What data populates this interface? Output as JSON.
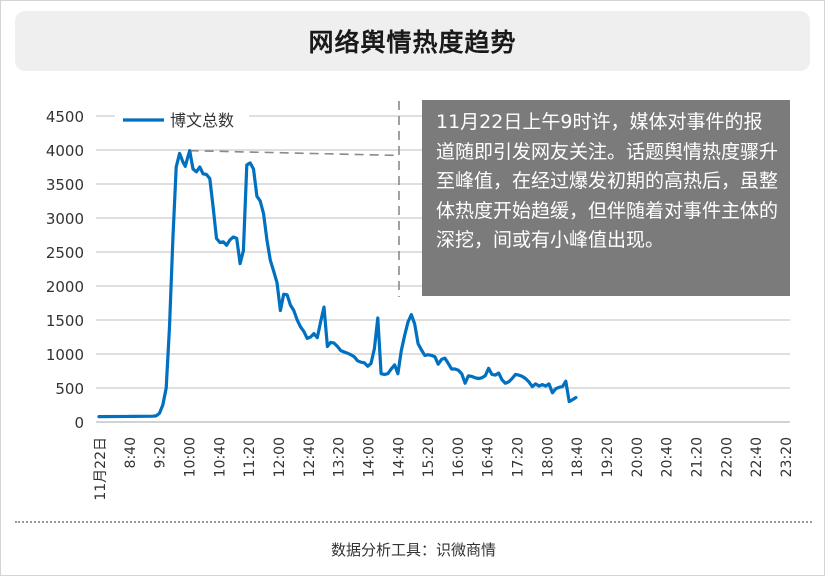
{
  "title": "网络舆情热度趋势",
  "annotation": "11月22日上午9时许，媒体对事件的报道随即引发网友关注。话题舆情热度骤升至峰值，在经过爆发初期的高热后，虽整体热度开始趋缓，但伴随着对事件主体的深挖，间或有小峰值出现。",
  "footer": "数据分析工具：识微商情",
  "colors": {
    "series": "#0070c0",
    "annotation_bg": "#7b7b7b",
    "grid": "#bfbfbf",
    "title_bg": "#efefef"
  },
  "chart_data": {
    "type": "line",
    "legend_position": "top-left",
    "grid": true,
    "ylim": [
      0,
      4500
    ],
    "yticks": [
      0,
      500,
      1000,
      1500,
      2000,
      2500,
      3000,
      3500,
      4000,
      4500
    ],
    "xlim": [
      0,
      205
    ],
    "xticks": [
      "11月22日",
      "8:40",
      "9:20",
      "10:00",
      "10:40",
      "11:20",
      "12:00",
      "12:40",
      "13:20",
      "14:00",
      "14:40",
      "15:20",
      "16:00",
      "16:40",
      "17:20",
      "18:00",
      "18:40",
      "19:20",
      "20:00",
      "20:40",
      "21:20",
      "22:00",
      "22:40",
      "23:20"
    ],
    "series": [
      {
        "name": "博文总数",
        "points": [
          [
            0,
            80
          ],
          [
            10,
            82
          ],
          [
            16,
            85
          ],
          [
            17,
            90
          ],
          [
            18,
            130
          ],
          [
            19,
            250
          ],
          [
            20,
            500
          ],
          [
            21,
            1400
          ],
          [
            22,
            2700
          ],
          [
            23,
            3750
          ],
          [
            24,
            3950
          ],
          [
            25,
            3820
          ],
          [
            25.7,
            3760
          ],
          [
            26.3,
            3870
          ],
          [
            27,
            3990
          ],
          [
            28,
            3720
          ],
          [
            29,
            3680
          ],
          [
            30,
            3750
          ],
          [
            31,
            3650
          ],
          [
            32,
            3640
          ],
          [
            33,
            3580
          ],
          [
            34,
            3150
          ],
          [
            35,
            2700
          ],
          [
            36,
            2640
          ],
          [
            37,
            2650
          ],
          [
            38,
            2600
          ],
          [
            39,
            2680
          ],
          [
            40,
            2720
          ],
          [
            41,
            2700
          ],
          [
            42,
            2330
          ],
          [
            43,
            2520
          ],
          [
            44,
            3780
          ],
          [
            45,
            3810
          ],
          [
            46,
            3720
          ],
          [
            47,
            3320
          ],
          [
            48,
            3250
          ],
          [
            49,
            3060
          ],
          [
            50,
            2680
          ],
          [
            51,
            2380
          ],
          [
            52,
            2220
          ],
          [
            53,
            2050
          ],
          [
            54,
            1640
          ],
          [
            55,
            1880
          ],
          [
            56,
            1870
          ],
          [
            57,
            1720
          ],
          [
            58,
            1640
          ],
          [
            59,
            1500
          ],
          [
            60,
            1400
          ],
          [
            61,
            1330
          ],
          [
            62,
            1230
          ],
          [
            63,
            1250
          ],
          [
            64,
            1300
          ],
          [
            65,
            1240
          ],
          [
            66,
            1480
          ],
          [
            67,
            1690
          ],
          [
            68,
            1110
          ],
          [
            69,
            1170
          ],
          [
            70,
            1160
          ],
          [
            71,
            1110
          ],
          [
            72,
            1050
          ],
          [
            73,
            1030
          ],
          [
            74,
            1010
          ],
          [
            75,
            990
          ],
          [
            76,
            960
          ],
          [
            77,
            900
          ],
          [
            78,
            880
          ],
          [
            79,
            870
          ],
          [
            80,
            820
          ],
          [
            81,
            860
          ],
          [
            82,
            1080
          ],
          [
            83,
            1530
          ],
          [
            84,
            710
          ],
          [
            85,
            700
          ],
          [
            86,
            710
          ],
          [
            87,
            780
          ],
          [
            88,
            840
          ],
          [
            89,
            710
          ],
          [
            90,
            1050
          ],
          [
            91,
            1270
          ],
          [
            92,
            1470
          ],
          [
            93,
            1580
          ],
          [
            94,
            1440
          ],
          [
            95,
            1150
          ],
          [
            96,
            1060
          ],
          [
            97,
            980
          ],
          [
            98,
            990
          ],
          [
            99,
            980
          ],
          [
            100,
            960
          ],
          [
            101,
            850
          ],
          [
            102,
            920
          ],
          [
            103,
            940
          ],
          [
            104,
            860
          ],
          [
            105,
            780
          ],
          [
            106,
            780
          ],
          [
            107,
            760
          ],
          [
            108,
            710
          ],
          [
            109,
            570
          ],
          [
            110,
            680
          ],
          [
            111,
            670
          ],
          [
            112,
            650
          ],
          [
            113,
            640
          ],
          [
            114,
            650
          ],
          [
            115,
            680
          ],
          [
            116,
            790
          ],
          [
            117,
            700
          ],
          [
            118,
            690
          ],
          [
            119,
            720
          ],
          [
            120,
            620
          ],
          [
            121,
            570
          ],
          [
            122,
            590
          ],
          [
            123,
            640
          ],
          [
            124,
            700
          ],
          [
            125,
            690
          ],
          [
            126,
            670
          ],
          [
            127,
            640
          ],
          [
            128,
            590
          ],
          [
            129,
            520
          ],
          [
            130,
            560
          ],
          [
            131,
            530
          ],
          [
            132,
            550
          ],
          [
            133,
            530
          ],
          [
            134,
            560
          ],
          [
            135,
            430
          ],
          [
            136,
            490
          ],
          [
            137,
            510
          ],
          [
            138,
            520
          ],
          [
            139,
            600
          ],
          [
            140,
            300
          ],
          [
            141,
            330
          ],
          [
            142,
            360
          ]
        ]
      }
    ]
  }
}
